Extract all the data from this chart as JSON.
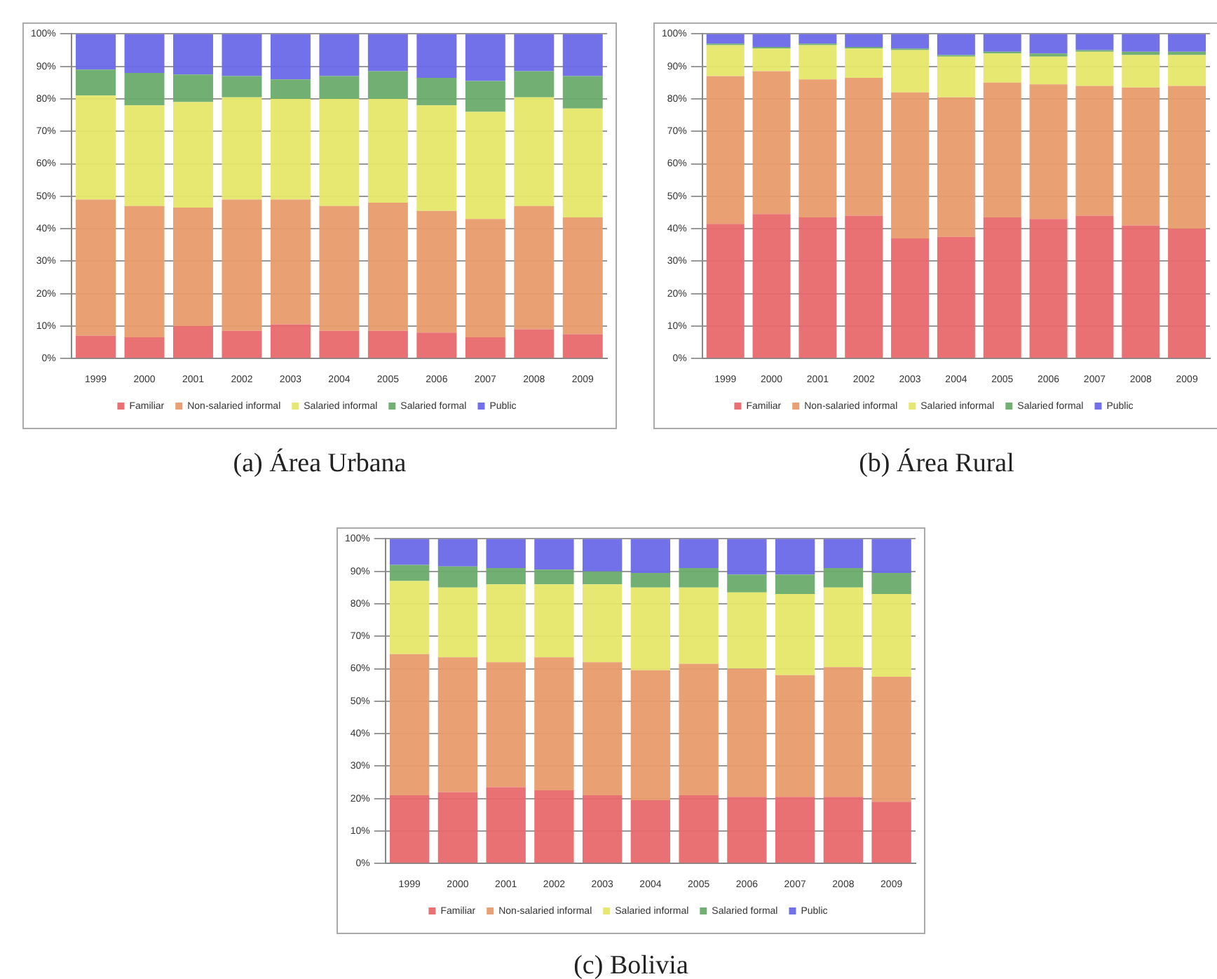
{
  "chart_data": [
    {
      "type": "bar",
      "stacked": true,
      "title": "(a) Área Urbana",
      "categories": [
        "1999",
        "2000",
        "2001",
        "2002",
        "2003",
        "2004",
        "2005",
        "2006",
        "2007",
        "2008",
        "2009"
      ],
      "ylim": [
        0,
        100
      ],
      "yticks": [
        {
          "value": 0,
          "label": "0%"
        },
        {
          "value": 10,
          "label": "10%"
        },
        {
          "value": 20,
          "label": "20%"
        },
        {
          "value": 30,
          "label": "30%"
        },
        {
          "value": 40,
          "label": "40%"
        },
        {
          "value": 50,
          "label": "50%"
        },
        {
          "value": 60,
          "label": "60%"
        },
        {
          "value": 70,
          "label": "70%"
        },
        {
          "value": 80,
          "label": "80%"
        },
        {
          "value": 90,
          "label": "90%"
        },
        {
          "value": 100,
          "label": "100%"
        }
      ],
      "grid": "y",
      "legend": "bottom",
      "series": [
        {
          "name": "Familiar",
          "color": "#e8696b",
          "values": [
            7,
            6.5,
            10,
            8.5,
            10.5,
            8.5,
            8.5,
            8,
            6.5,
            9,
            7.5
          ]
        },
        {
          "name": "Non-salaried informal",
          "color": "#e89c6b",
          "values": [
            42,
            40.5,
            36.5,
            40.5,
            38.5,
            38.5,
            39.5,
            37.5,
            36.5,
            38,
            36
          ]
        },
        {
          "name": "Salaried informal",
          "color": "#e6e76a",
          "values": [
            32,
            31,
            32.5,
            31.5,
            31,
            33,
            32,
            32.5,
            33,
            33.5,
            33.5
          ]
        },
        {
          "name": "Salaried formal",
          "color": "#69ab6a",
          "values": [
            8,
            10,
            8.5,
            6.5,
            6,
            7,
            8.5,
            8.5,
            9.5,
            8,
            10
          ]
        },
        {
          "name": "Public",
          "color": "#6a69e8",
          "values": [
            11,
            12,
            12.5,
            13,
            14,
            13,
            11.5,
            13.5,
            14.5,
            11.5,
            13
          ]
        }
      ]
    },
    {
      "type": "bar",
      "stacked": true,
      "title": "(b) Área Rural",
      "categories": [
        "1999",
        "2000",
        "2001",
        "2002",
        "2003",
        "2004",
        "2005",
        "2006",
        "2007",
        "2008",
        "2009"
      ],
      "ylim": [
        0,
        100
      ],
      "yticks": [
        {
          "value": 0,
          "label": "0%"
        },
        {
          "value": 10,
          "label": "10%"
        },
        {
          "value": 20,
          "label": "20%"
        },
        {
          "value": 30,
          "label": "30%"
        },
        {
          "value": 40,
          "label": "40%"
        },
        {
          "value": 50,
          "label": "50%"
        },
        {
          "value": 60,
          "label": "60%"
        },
        {
          "value": 70,
          "label": "70%"
        },
        {
          "value": 80,
          "label": "80%"
        },
        {
          "value": 90,
          "label": "90%"
        },
        {
          "value": 100,
          "label": "100%"
        }
      ],
      "grid": "y",
      "legend": "bottom",
      "series": [
        {
          "name": "Familiar",
          "color": "#e8696b",
          "values": [
            41.5,
            44.5,
            43.5,
            44,
            37,
            37.5,
            43.5,
            43,
            44,
            41,
            40
          ]
        },
        {
          "name": "Non-salaried informal",
          "color": "#e89c6b",
          "values": [
            45.5,
            44,
            42.5,
            42.5,
            45,
            43,
            41.5,
            41.5,
            40,
            42.5,
            44
          ]
        },
        {
          "name": "Salaried informal",
          "color": "#e6e76a",
          "values": [
            9.5,
            7,
            10.5,
            9,
            13,
            12.5,
            9,
            8.5,
            10.5,
            10,
            9.5
          ]
        },
        {
          "name": "Salaried formal",
          "color": "#69ab6a",
          "values": [
            0.5,
            0.5,
            0.5,
            0.5,
            0.5,
            0.5,
            0.5,
            1,
            0.5,
            1,
            1
          ]
        },
        {
          "name": "Public",
          "color": "#6a69e8",
          "values": [
            3,
            4,
            3,
            4,
            4.5,
            6.5,
            5.5,
            6,
            5,
            5.5,
            5.5
          ]
        }
      ]
    },
    {
      "type": "bar",
      "stacked": true,
      "title": "(c) Bolivia",
      "categories": [
        "1999",
        "2000",
        "2001",
        "2002",
        "2003",
        "2004",
        "2005",
        "2006",
        "2007",
        "2008",
        "2009"
      ],
      "ylim": [
        0,
        100
      ],
      "yticks": [
        {
          "value": 0,
          "label": "0%"
        },
        {
          "value": 10,
          "label": "10%"
        },
        {
          "value": 20,
          "label": "20%"
        },
        {
          "value": 30,
          "label": "30%"
        },
        {
          "value": 40,
          "label": "40%"
        },
        {
          "value": 50,
          "label": "50%"
        },
        {
          "value": 60,
          "label": "60%"
        },
        {
          "value": 70,
          "label": "70%"
        },
        {
          "value": 80,
          "label": "80%"
        },
        {
          "value": 90,
          "label": "90%"
        },
        {
          "value": 100,
          "label": "100%"
        }
      ],
      "grid": "y",
      "legend": "bottom",
      "series": [
        {
          "name": "Familiar",
          "color": "#e8696b",
          "values": [
            21,
            22,
            23.5,
            22.5,
            21,
            19.5,
            21,
            20.5,
            20.5,
            20.5,
            19
          ]
        },
        {
          "name": "Non-salaried informal",
          "color": "#e89c6b",
          "values": [
            43.5,
            41.5,
            38.5,
            41,
            41,
            40,
            40.5,
            39.5,
            37.5,
            40,
            38.5
          ]
        },
        {
          "name": "Salaried informal",
          "color": "#e6e76a",
          "values": [
            22.5,
            21.5,
            24,
            22.5,
            24,
            25.5,
            23.5,
            23.5,
            25,
            24.5,
            25.5
          ]
        },
        {
          "name": "Salaried formal",
          "color": "#69ab6a",
          "values": [
            5,
            6.5,
            5,
            4.5,
            4,
            4.5,
            6,
            5.5,
            6,
            6,
            6.5
          ]
        },
        {
          "name": "Public",
          "color": "#6a69e8",
          "values": [
            8,
            8.5,
            9,
            9.5,
            10,
            10.5,
            9,
            11,
            11,
            9,
            10.5
          ]
        }
      ]
    }
  ]
}
